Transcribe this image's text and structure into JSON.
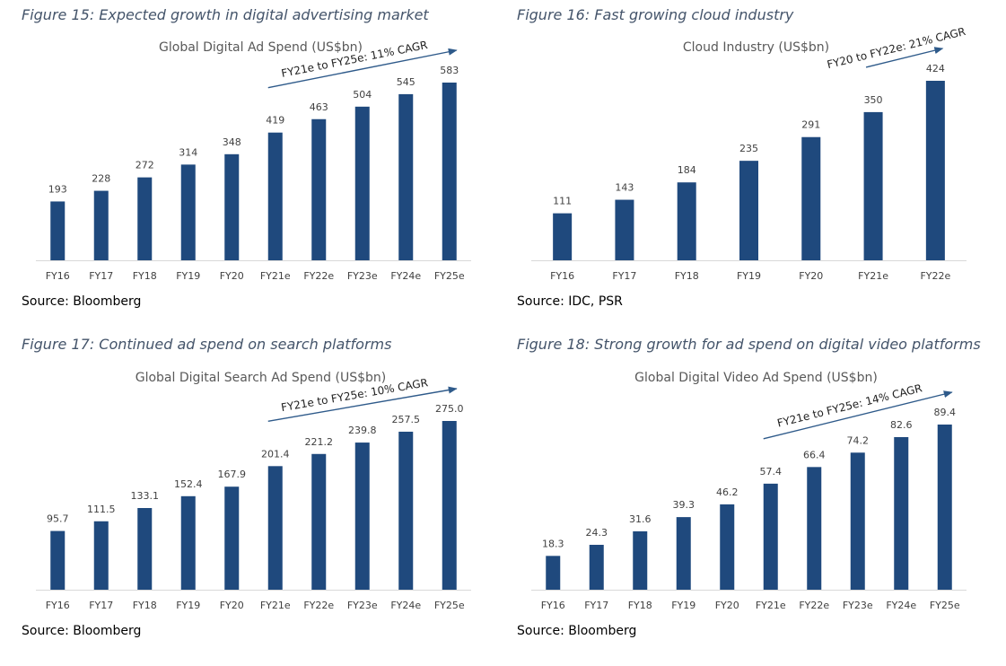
{
  "colors": {
    "bar": "#1f497d",
    "arrow": "#2e5a8a",
    "axis": "#d9d9d9"
  },
  "figures": [
    {
      "caption": "Figure 15: Expected growth in digital advertising market",
      "source": "Source: Bloomberg"
    },
    {
      "caption": "Figure 16: Fast growing cloud industry",
      "source": "Source: IDC, PSR"
    },
    {
      "caption": "Figure 17: Continued ad spend on search platforms",
      "source": "Source: Bloomberg"
    },
    {
      "caption": "Figure 18: Strong growth for ad spend on digital video platforms",
      "source": "Source: Bloomberg"
    }
  ],
  "chart_data": [
    {
      "type": "bar",
      "title": "Global Digital Ad Spend (US$bn)",
      "categories": [
        "FY16",
        "FY17",
        "FY18",
        "FY19",
        "FY20",
        "FY21e",
        "FY22e",
        "FY23e",
        "FY24e",
        "FY25e"
      ],
      "values": [
        193,
        228,
        272,
        314,
        348,
        419,
        463,
        504,
        545,
        583
      ],
      "value_labels": [
        "193",
        "228",
        "272",
        "314",
        "348",
        "419",
        "463",
        "504",
        "545",
        "583"
      ],
      "annotation": "FY21e to FY25e: 11% CAGR",
      "ylim": [
        0,
        700
      ],
      "grid": false,
      "legend": "none"
    },
    {
      "type": "bar",
      "title": "Cloud Industry (US$bn)",
      "categories": [
        "FY16",
        "FY17",
        "FY18",
        "FY19",
        "FY20",
        "FY21e",
        "FY22e"
      ],
      "values": [
        111,
        143,
        184,
        235,
        291,
        350,
        424
      ],
      "value_labels": [
        "111",
        "143",
        "184",
        "235",
        "291",
        "350",
        "424"
      ],
      "annotation": "FY20 to FY22e: 21% CAGR",
      "ylim": [
        0,
        520
      ],
      "grid": false,
      "legend": "none"
    },
    {
      "type": "bar",
      "title": "Global Digital Search Ad Spend (US$bn)",
      "categories": [
        "FY16",
        "FY17",
        "FY18",
        "FY19",
        "FY20",
        "FY21e",
        "FY22e",
        "FY23e",
        "FY24e",
        "FY25e"
      ],
      "values": [
        95.7,
        111.5,
        133.1,
        152.4,
        167.9,
        201.4,
        221.2,
        239.8,
        257.5,
        275.0
      ],
      "value_labels": [
        "95.7",
        "111.5",
        "133.1",
        "152.4",
        "167.9",
        "201.4",
        "221.2",
        "239.8",
        "257.5",
        "275.0"
      ],
      "annotation": "FY21e to FY25e: 10% CAGR",
      "ylim": [
        0,
        330
      ],
      "grid": false,
      "legend": "none"
    },
    {
      "type": "bar",
      "title": "Global Digital Video Ad Spend (US$bn)",
      "categories": [
        "FY16",
        "FY17",
        "FY18",
        "FY19",
        "FY20",
        "FY21e",
        "FY22e",
        "FY23e",
        "FY24e",
        "FY25e"
      ],
      "values": [
        18.3,
        24.3,
        31.6,
        39.3,
        46.2,
        57.4,
        66.4,
        74.2,
        82.6,
        89.4
      ],
      "value_labels": [
        "18.3",
        "24.3",
        "31.6",
        "39.3",
        "46.2",
        "57.4",
        "66.4",
        "74.2",
        "82.6",
        "89.4"
      ],
      "annotation": "FY21e to FY25e: 14% CAGR",
      "ylim": [
        0,
        105
      ],
      "grid": false,
      "legend": "none"
    }
  ]
}
